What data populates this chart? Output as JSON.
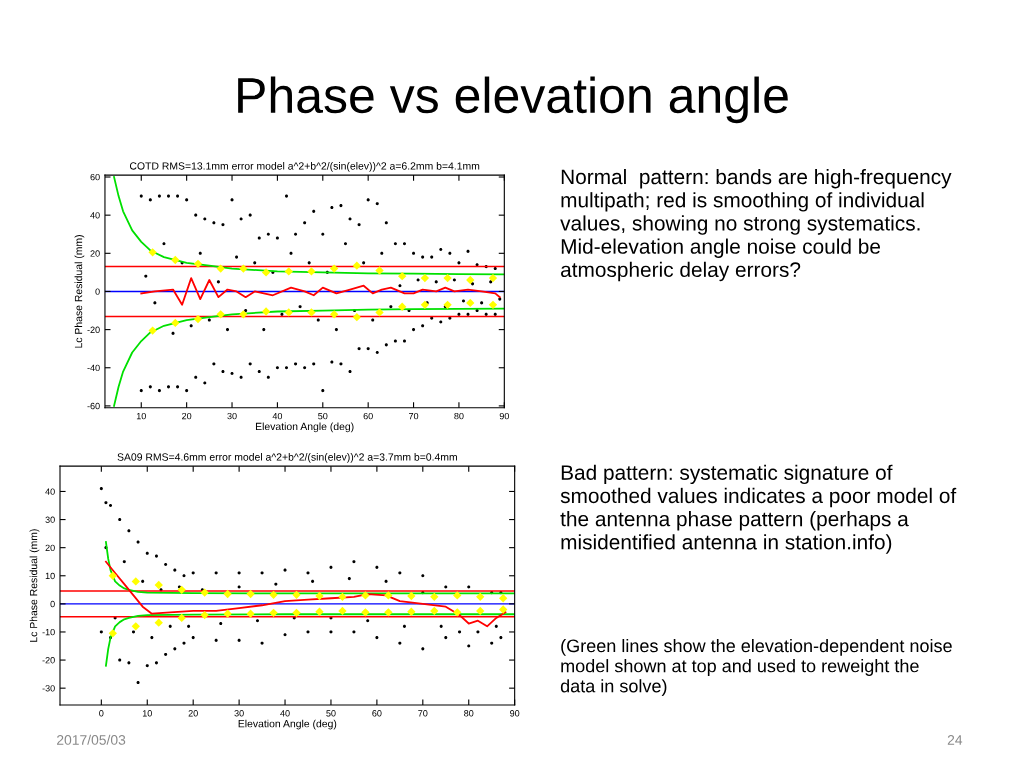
{
  "chart_data": [
    {
      "type": "scatter",
      "title": "COTD RMS=13.1mm error model a^2+b^2/(sin(elev))^2 a=6.2mm b=4.1mm",
      "xlabel": "Elevation Angle (deg)",
      "ylabel": "Lc Phase Residual (mm)",
      "xlim": [
        2,
        90
      ],
      "ylim": [
        -61,
        61
      ],
      "xticks": [
        10,
        20,
        30,
        40,
        50,
        60,
        70,
        80,
        90
      ],
      "yticks": [
        -60,
        -40,
        -20,
        0,
        20,
        40,
        60
      ],
      "grid": false,
      "legend": false,
      "series": [
        {
          "type": "scatter",
          "color": "#000000",
          "marker": "circle",
          "x": [
            10,
            12,
            14,
            16,
            18,
            20,
            22,
            24,
            26,
            28,
            30,
            32,
            34,
            36,
            38,
            40,
            42,
            44,
            46,
            48,
            50,
            52,
            54,
            56,
            58,
            60,
            62,
            64,
            66,
            68,
            70,
            72,
            74,
            76,
            78,
            80,
            82,
            84,
            86,
            88,
            10,
            12,
            14,
            16,
            18,
            20,
            22,
            24,
            26,
            28,
            30,
            32,
            34,
            36,
            38,
            40,
            42,
            44,
            46,
            48,
            50,
            52,
            54,
            56,
            58,
            60,
            62,
            64,
            66,
            68,
            70,
            72,
            74,
            76,
            78,
            80,
            82,
            84,
            86,
            88,
            11,
            13,
            15,
            17,
            19,
            21,
            23,
            25,
            27,
            29,
            31,
            33,
            35,
            37,
            39,
            41,
            43,
            45,
            47,
            49,
            51,
            53,
            55,
            57,
            59,
            61,
            63,
            65,
            67,
            69,
            71,
            73,
            75,
            77,
            79,
            81,
            83,
            85,
            87,
            89
          ],
          "values": [
            50,
            48,
            50,
            50,
            50,
            48,
            40,
            38,
            36,
            35,
            48,
            38,
            40,
            28,
            30,
            28,
            50,
            30,
            36,
            42,
            30,
            44,
            45,
            38,
            35,
            48,
            46,
            36,
            25,
            25,
            20,
            18,
            18,
            22,
            20,
            15,
            21,
            14,
            13,
            12,
            -52,
            -50,
            -52,
            -50,
            -50,
            -52,
            -45,
            -48,
            -38,
            -42,
            -43,
            -45,
            -38,
            -42,
            -45,
            -40,
            -40,
            -38,
            -40,
            -38,
            -52,
            -37,
            -38,
            -42,
            -30,
            -30,
            -32,
            -28,
            -26,
            -26,
            -20,
            -18,
            -14,
            -16,
            -14,
            -12,
            -12,
            -10,
            -12,
            -12,
            8,
            -6,
            25,
            -22,
            15,
            -18,
            20,
            -15,
            5,
            -20,
            18,
            -10,
            15,
            -20,
            10,
            -12,
            20,
            -8,
            15,
            -15,
            10,
            -20,
            25,
            -10,
            15,
            -15,
            20,
            -8,
            3,
            -10,
            6,
            -6,
            5,
            -8,
            6,
            -5,
            4,
            -6,
            5,
            -4
          ]
        },
        {
          "type": "line",
          "color": "#00e000",
          "x": [
            4,
            5,
            6,
            8,
            10,
            12,
            15,
            20,
            25,
            30,
            40,
            50,
            60,
            70,
            80,
            90
          ],
          "values": [
            60,
            50,
            42,
            32,
            26,
            21.5,
            18,
            15,
            13.5,
            12,
            10.5,
            10,
            9.5,
            9.3,
            9.1,
            9
          ]
        },
        {
          "type": "line",
          "color": "#00e000",
          "x": [
            4,
            5,
            6,
            8,
            10,
            12,
            15,
            20,
            25,
            30,
            40,
            50,
            60,
            70,
            80,
            90
          ],
          "values": [
            -60,
            -50,
            -42,
            -32,
            -26,
            -21.5,
            -18,
            -15,
            -13.5,
            -12,
            -10.5,
            -10,
            -9.5,
            -9.3,
            -9.1,
            -9
          ]
        },
        {
          "type": "line",
          "color": "#ff0000",
          "x": [
            10,
            13,
            17,
            19,
            21,
            23,
            25,
            27,
            29,
            31,
            33,
            35,
            37,
            39,
            43,
            46,
            48,
            50,
            53,
            56,
            59,
            61,
            63,
            65,
            68,
            70,
            72,
            75,
            77,
            79,
            82,
            85,
            88,
            89
          ],
          "values": [
            -1,
            0,
            1,
            -7,
            7,
            -4,
            6,
            -3,
            1,
            0,
            -3,
            0,
            -1,
            -2,
            2,
            0,
            -2,
            2,
            -1,
            1,
            3,
            -1,
            1,
            2,
            -1,
            -1,
            1,
            0,
            2,
            0,
            1,
            0,
            -1,
            -3
          ]
        },
        {
          "type": "scatter",
          "color": "#ffff00",
          "marker": "diamond",
          "x": [
            12.5,
            17.5,
            22.5,
            27.5,
            32.5,
            37.5,
            42.5,
            47.5,
            52.5,
            57.5,
            62.5,
            67.5,
            72.5,
            77.5,
            82.5,
            87.5,
            12.5,
            17.5,
            22.5,
            27.5,
            32.5,
            37.5,
            42.5,
            47.5,
            52.5,
            57.5,
            62.5,
            67.5,
            72.5,
            77.5,
            82.5,
            87.5
          ],
          "values": [
            20.5,
            16.5,
            14.5,
            12,
            12,
            10,
            10.5,
            10.5,
            12,
            13.5,
            11,
            8,
            7,
            7,
            6,
            7,
            -20.5,
            -16.5,
            -14.5,
            -12,
            -12,
            -10.5,
            -11,
            -11,
            -12,
            -13.5,
            -11,
            -8,
            -7,
            -7,
            -6,
            -7
          ]
        }
      ],
      "ref_lines": [
        {
          "axis": "y",
          "value": 13.1,
          "color": "#ff0000"
        },
        {
          "axis": "y",
          "value": -13.1,
          "color": "#ff0000"
        },
        {
          "axis": "y",
          "value": 0,
          "color": "#0000ff"
        }
      ]
    },
    {
      "type": "scatter",
      "title": "SA09 RMS=4.6mm error model a^2+b^2/(sin(elev))^2 a=3.7mm b=0.4mm",
      "xlabel": "Elevation Angle (deg)",
      "ylabel": "Lc Phase Residual (mm)",
      "xlim": [
        -9,
        90
      ],
      "ylim": [
        -36,
        49
      ],
      "xticks": [
        0,
        10,
        20,
        30,
        40,
        50,
        60,
        70,
        80,
        90
      ],
      "yticks": [
        -30,
        -20,
        -10,
        0,
        10,
        20,
        30,
        40
      ],
      "grid": false,
      "legend": false,
      "series": [
        {
          "type": "scatter",
          "color": "#000000",
          "marker": "circle",
          "x": [
            0,
            1,
            2,
            4,
            6,
            8,
            10,
            12,
            14,
            16,
            18,
            20,
            25,
            30,
            35,
            40,
            45,
            50,
            55,
            60,
            65,
            70,
            75,
            80,
            85,
            87,
            0,
            2,
            4,
            6,
            8,
            10,
            12,
            14,
            16,
            18,
            20,
            25,
            30,
            35,
            40,
            45,
            50,
            55,
            60,
            65,
            70,
            75,
            80,
            85,
            87,
            1,
            3,
            5,
            7,
            9,
            11,
            13,
            15,
            17,
            19,
            22,
            26,
            30,
            34,
            38,
            42,
            46,
            50,
            54,
            58,
            62,
            66,
            70,
            74,
            78,
            82,
            86
          ],
          "values": [
            41,
            36,
            35,
            30,
            26,
            22,
            18,
            17,
            14,
            12,
            10,
            11,
            11,
            11,
            11,
            12,
            11,
            13,
            15,
            13,
            11,
            10,
            6,
            6,
            4,
            4,
            -10,
            -12,
            -20,
            -21,
            -28,
            -22,
            -21,
            -18,
            -16,
            -14,
            -12,
            -13,
            -13,
            -14,
            -11,
            -10,
            -10,
            -10,
            -12,
            -14,
            -16,
            -12,
            -15,
            -14,
            -12,
            20,
            -5,
            15,
            -10,
            8,
            -12,
            5,
            -8,
            6,
            -8,
            5,
            -7,
            6,
            -6,
            7,
            -5,
            8,
            -5,
            9,
            -6,
            8,
            -8,
            4,
            -8,
            -10,
            -10,
            -8
          ]
        },
        {
          "type": "line",
          "color": "#00e000",
          "x": [
            1,
            1.5,
            2,
            3,
            4,
            5,
            6,
            8,
            10,
            20,
            40,
            90
          ],
          "values": [
            22,
            16,
            12,
            8,
            6.5,
            5.5,
            5,
            4.3,
            4,
            3.8,
            3.7,
            3.7
          ]
        },
        {
          "type": "line",
          "color": "#00e000",
          "x": [
            1,
            1.5,
            2,
            3,
            4,
            5,
            6,
            8,
            10,
            20,
            40,
            90
          ],
          "values": [
            -22,
            -16,
            -12,
            -8,
            -6.5,
            -5.5,
            -5,
            -4.3,
            -4,
            -3.8,
            -3.7,
            -3.7
          ]
        },
        {
          "type": "line",
          "color": "#ff0000",
          "x": [
            1,
            3,
            5,
            7,
            9,
            11,
            15,
            20,
            25,
            30,
            35,
            40,
            45,
            50,
            55,
            58,
            62,
            65,
            70,
            75,
            78,
            80,
            82,
            84,
            86,
            88
          ],
          "values": [
            15,
            11,
            7,
            3,
            -1,
            -3.5,
            -3,
            -2.5,
            -2.5,
            -1.5,
            -0.5,
            1,
            1.5,
            2,
            2.5,
            3.5,
            3,
            1,
            0,
            -1,
            -4,
            -7,
            -6,
            -8,
            -5,
            -3
          ]
        },
        {
          "type": "scatter",
          "color": "#ffff00",
          "marker": "diamond",
          "x": [
            2.5,
            7.5,
            12.5,
            17.5,
            22.5,
            27.5,
            32.5,
            37.5,
            42.5,
            47.5,
            52.5,
            57.5,
            62.5,
            67.5,
            72.5,
            77.5,
            82.5,
            87.5,
            2.5,
            7.5,
            12.5,
            17.5,
            22.5,
            27.5,
            32.5,
            37.5,
            42.5,
            47.5,
            52.5,
            57.5,
            62.5,
            67.5,
            72.5,
            77.5,
            82.5,
            87.5
          ],
          "values": [
            10,
            8,
            6.7,
            5,
            4,
            3.5,
            3.5,
            3.2,
            3.2,
            2.8,
            2.5,
            3,
            3,
            2.8,
            2.5,
            3,
            2.5,
            2,
            -10.5,
            -8,
            -6.7,
            -5,
            -4,
            -3.5,
            -3.5,
            -3.2,
            -3.2,
            -2.8,
            -2.5,
            -3,
            -3,
            -2.8,
            -2.5,
            -3,
            -2.5,
            -2
          ]
        }
      ],
      "ref_lines": [
        {
          "axis": "y",
          "value": 4.6,
          "color": "#ff0000"
        },
        {
          "axis": "y",
          "value": -4.6,
          "color": "#ff0000"
        },
        {
          "axis": "y",
          "value": 0,
          "color": "#0000ff"
        }
      ]
    },
    {
      "type": "other",
      "title": "Phase vs elevation angle",
      "annotations": [
        "Normal  pattern: bands are high-frequency\nmultipath; red is smoothing of individual\nvalues, showing no strong systematics.\nMid-elevation angle noise could be\natmospheric delay errors?",
        "Bad pattern: systematic signature of\nsmoothed values indicates a poor model of\nthe antenna phase pattern (perhaps a\nmisidentified antenna in station.info)",
        "(Green lines show the elevation-dependent noise\nmodel shown at top and used to reweight the\ndata in solve)",
        "2017/05/03",
        "24"
      ]
    }
  ]
}
